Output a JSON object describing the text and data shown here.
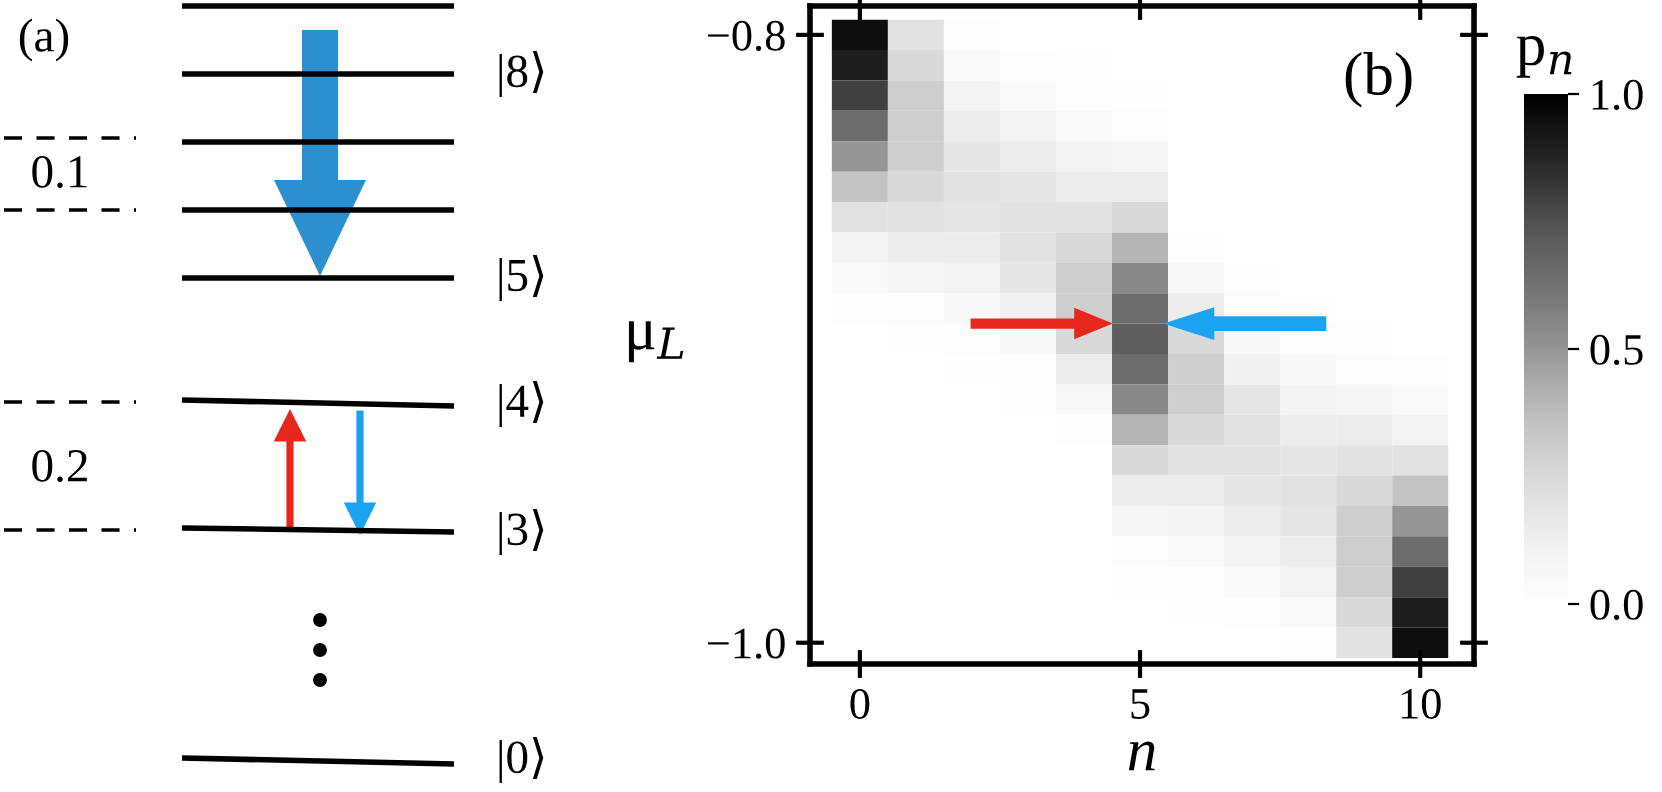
{
  "chart_data": [
    {
      "type": "other",
      "annotations": [
        "(a)",
        "|8⟩",
        "|5⟩",
        "|4⟩",
        "|3⟩",
        "|0⟩",
        "0.1",
        "0.2"
      ]
    },
    {
      "type": "heatmap",
      "xlabel": "n",
      "ylabel": "μ$_{L}$",
      "clabel": "p$_{n}$",
      "annotations": [
        "(b)"
      ],
      "categories": [
        "0",
        null,
        null,
        null,
        null,
        "5",
        null,
        null,
        null,
        null,
        "10"
      ],
      "y_categories": [
        "−0.8",
        null,
        null,
        null,
        null,
        null,
        null,
        null,
        null,
        null,
        null,
        null,
        null,
        null,
        null,
        null,
        null,
        null,
        null,
        null,
        "−1.0"
      ],
      "clim": [
        0,
        1
      ],
      "cticks": [
        {
          "value": 0,
          "label": "0.0"
        },
        {
          "value": 0.5,
          "label": "0.5"
        },
        {
          "value": 1,
          "label": "1.0"
        }
      ],
      "cells": [
        [
          0.95,
          0.2,
          0.02,
          0,
          0,
          0,
          0,
          0,
          0,
          0,
          0
        ],
        [
          0.9,
          0.25,
          0.05,
          0.02,
          0.01,
          0,
          0,
          0,
          0,
          0,
          0
        ],
        [
          0.8,
          0.3,
          0.1,
          0.05,
          0.02,
          0.01,
          0,
          0,
          0,
          0,
          0
        ],
        [
          0.65,
          0.3,
          0.15,
          0.1,
          0.05,
          0.03,
          0,
          0,
          0,
          0,
          0
        ],
        [
          0.5,
          0.3,
          0.18,
          0.15,
          0.1,
          0.08,
          0,
          0,
          0,
          0,
          0
        ],
        [
          0.35,
          0.25,
          0.2,
          0.18,
          0.15,
          0.15,
          0,
          0,
          0,
          0,
          0
        ],
        [
          0.2,
          0.2,
          0.18,
          0.2,
          0.2,
          0.25,
          0,
          0,
          0,
          0,
          0
        ],
        [
          0.1,
          0.15,
          0.15,
          0.2,
          0.25,
          0.4,
          0.02,
          0,
          0,
          0,
          0
        ],
        [
          0.05,
          0.08,
          0.1,
          0.18,
          0.3,
          0.55,
          0.06,
          0.01,
          0,
          0,
          0
        ],
        [
          0.02,
          0.03,
          0.06,
          0.12,
          0.3,
          0.65,
          0.15,
          0.03,
          0.01,
          0,
          0
        ],
        [
          0,
          0.01,
          0.03,
          0.06,
          0.25,
          0.7,
          0.25,
          0.06,
          0.03,
          0.01,
          0
        ],
        [
          0,
          0,
          0.01,
          0.03,
          0.15,
          0.65,
          0.3,
          0.12,
          0.06,
          0.03,
          0.02
        ],
        [
          0,
          0,
          0,
          0.01,
          0.06,
          0.55,
          0.3,
          0.18,
          0.1,
          0.08,
          0.05
        ],
        [
          0,
          0,
          0,
          0,
          0.02,
          0.4,
          0.25,
          0.2,
          0.15,
          0.15,
          0.1
        ],
        [
          0,
          0,
          0,
          0,
          0,
          0.25,
          0.2,
          0.2,
          0.18,
          0.2,
          0.2
        ],
        [
          0,
          0,
          0,
          0,
          0,
          0.15,
          0.15,
          0.18,
          0.2,
          0.25,
          0.35
        ],
        [
          0,
          0,
          0,
          0,
          0,
          0.08,
          0.1,
          0.15,
          0.18,
          0.3,
          0.5
        ],
        [
          0,
          0,
          0,
          0,
          0,
          0.03,
          0.05,
          0.1,
          0.15,
          0.3,
          0.65
        ],
        [
          0,
          0,
          0,
          0,
          0,
          0.01,
          0.02,
          0.05,
          0.1,
          0.3,
          0.8
        ],
        [
          0,
          0,
          0,
          0,
          0,
          0,
          0.01,
          0.02,
          0.05,
          0.25,
          0.9
        ],
        [
          0,
          0,
          0,
          0,
          0,
          0,
          0,
          0,
          0.02,
          0.2,
          0.95
        ]
      ]
    }
  ]
}
